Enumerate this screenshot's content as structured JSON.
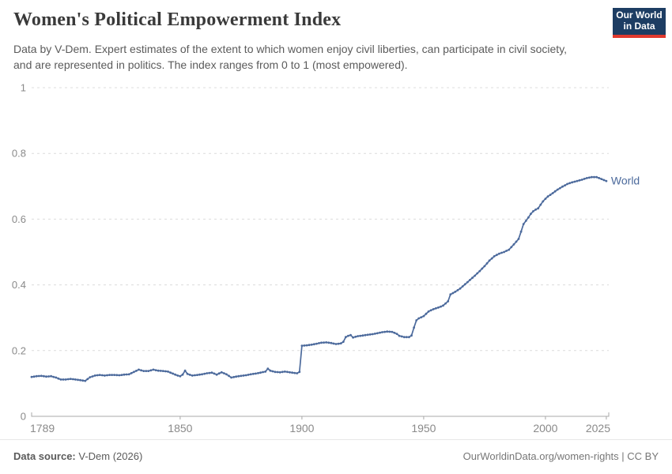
{
  "header": {
    "title": "Women's Political Empowerment Index",
    "subtitle": "Data by V-Dem. Expert estimates of the extent to which women enjoy civil liberties, can participate in civil society, and are represented in politics. The index ranges from 0 to 1 (most empowered).",
    "logo": {
      "line1": "Our World",
      "line2": "in Data",
      "bg_color": "#1d3d63",
      "accent_color": "#e0392e"
    }
  },
  "chart_data": {
    "type": "line",
    "title": "Women's Political Empowerment Index",
    "xlabel": "",
    "ylabel": "",
    "xlim": [
      1789,
      2026
    ],
    "ylim": [
      0,
      1
    ],
    "x_ticks": [
      1789,
      1850,
      1900,
      1950,
      2000,
      2025
    ],
    "x_tick_labels": [
      "1789",
      "1850",
      "1900",
      "1950",
      "2000",
      "2025"
    ],
    "y_ticks": [
      0,
      0.2,
      0.4,
      0.6,
      0.8,
      1
    ],
    "y_tick_labels": [
      "0",
      "0.2",
      "0.4",
      "0.6",
      "0.8",
      "1"
    ],
    "grid": "horizontal dashed gridlines",
    "legend_position": "label at end of line",
    "colors": {
      "line": "#4c6a9c",
      "grid": "#dcdcdc",
      "axis": "#a8a8a8",
      "tick_text": "#8a8a8a"
    },
    "series": [
      {
        "name": "World",
        "color": "#4c6a9c",
        "points": [
          [
            1789,
            0.12
          ],
          [
            1791,
            0.122
          ],
          [
            1793,
            0.123
          ],
          [
            1795,
            0.121
          ],
          [
            1797,
            0.122
          ],
          [
            1799,
            0.118
          ],
          [
            1801,
            0.112
          ],
          [
            1803,
            0.112
          ],
          [
            1805,
            0.114
          ],
          [
            1807,
            0.112
          ],
          [
            1809,
            0.11
          ],
          [
            1811,
            0.108
          ],
          [
            1813,
            0.119
          ],
          [
            1815,
            0.124
          ],
          [
            1817,
            0.126
          ],
          [
            1819,
            0.124
          ],
          [
            1821,
            0.126
          ],
          [
            1823,
            0.126
          ],
          [
            1825,
            0.125
          ],
          [
            1827,
            0.127
          ],
          [
            1829,
            0.128
          ],
          [
            1831,
            0.135
          ],
          [
            1833,
            0.142
          ],
          [
            1835,
            0.138
          ],
          [
            1837,
            0.138
          ],
          [
            1839,
            0.142
          ],
          [
            1841,
            0.139
          ],
          [
            1843,
            0.138
          ],
          [
            1845,
            0.136
          ],
          [
            1847,
            0.13
          ],
          [
            1849,
            0.124
          ],
          [
            1850,
            0.122
          ],
          [
            1851,
            0.127
          ],
          [
            1852,
            0.139
          ],
          [
            1853,
            0.129
          ],
          [
            1855,
            0.124
          ],
          [
            1857,
            0.126
          ],
          [
            1859,
            0.128
          ],
          [
            1861,
            0.131
          ],
          [
            1863,
            0.133
          ],
          [
            1865,
            0.127
          ],
          [
            1867,
            0.134
          ],
          [
            1869,
            0.128
          ],
          [
            1871,
            0.118
          ],
          [
            1873,
            0.121
          ],
          [
            1875,
            0.123
          ],
          [
            1877,
            0.125
          ],
          [
            1879,
            0.128
          ],
          [
            1881,
            0.13
          ],
          [
            1883,
            0.133
          ],
          [
            1885,
            0.136
          ],
          [
            1886,
            0.145
          ],
          [
            1887,
            0.139
          ],
          [
            1889,
            0.135
          ],
          [
            1891,
            0.134
          ],
          [
            1893,
            0.136
          ],
          [
            1895,
            0.134
          ],
          [
            1897,
            0.132
          ],
          [
            1898,
            0.131
          ],
          [
            1899,
            0.135
          ],
          [
            1900,
            0.215
          ],
          [
            1902,
            0.216
          ],
          [
            1904,
            0.218
          ],
          [
            1906,
            0.221
          ],
          [
            1908,
            0.224
          ],
          [
            1910,
            0.225
          ],
          [
            1912,
            0.223
          ],
          [
            1914,
            0.22
          ],
          [
            1916,
            0.222
          ],
          [
            1917,
            0.227
          ],
          [
            1918,
            0.241
          ],
          [
            1919,
            0.245
          ],
          [
            1920,
            0.247
          ],
          [
            1921,
            0.24
          ],
          [
            1923,
            0.244
          ],
          [
            1925,
            0.246
          ],
          [
            1927,
            0.248
          ],
          [
            1929,
            0.25
          ],
          [
            1931,
            0.253
          ],
          [
            1933,
            0.256
          ],
          [
            1935,
            0.258
          ],
          [
            1937,
            0.257
          ],
          [
            1939,
            0.251
          ],
          [
            1940,
            0.245
          ],
          [
            1942,
            0.241
          ],
          [
            1944,
            0.241
          ],
          [
            1945,
            0.246
          ],
          [
            1946,
            0.27
          ],
          [
            1947,
            0.292
          ],
          [
            1948,
            0.298
          ],
          [
            1950,
            0.305
          ],
          [
            1952,
            0.319
          ],
          [
            1954,
            0.326
          ],
          [
            1956,
            0.331
          ],
          [
            1958,
            0.337
          ],
          [
            1960,
            0.35
          ],
          [
            1961,
            0.371
          ],
          [
            1963,
            0.379
          ],
          [
            1965,
            0.389
          ],
          [
            1967,
            0.402
          ],
          [
            1969,
            0.415
          ],
          [
            1971,
            0.428
          ],
          [
            1973,
            0.442
          ],
          [
            1975,
            0.457
          ],
          [
            1977,
            0.474
          ],
          [
            1979,
            0.487
          ],
          [
            1981,
            0.495
          ],
          [
            1983,
            0.5
          ],
          [
            1985,
            0.507
          ],
          [
            1987,
            0.523
          ],
          [
            1989,
            0.54
          ],
          [
            1990,
            0.562
          ],
          [
            1991,
            0.585
          ],
          [
            1992,
            0.595
          ],
          [
            1993,
            0.605
          ],
          [
            1994,
            0.616
          ],
          [
            1995,
            0.624
          ],
          [
            1996,
            0.629
          ],
          [
            1997,
            0.633
          ],
          [
            1998,
            0.644
          ],
          [
            1999,
            0.654
          ],
          [
            2000,
            0.662
          ],
          [
            2001,
            0.669
          ],
          [
            2003,
            0.679
          ],
          [
            2005,
            0.69
          ],
          [
            2007,
            0.699
          ],
          [
            2009,
            0.707
          ],
          [
            2011,
            0.712
          ],
          [
            2013,
            0.716
          ],
          [
            2015,
            0.72
          ],
          [
            2017,
            0.725
          ],
          [
            2019,
            0.728
          ],
          [
            2021,
            0.728
          ],
          [
            2023,
            0.722
          ],
          [
            2025,
            0.716
          ]
        ]
      }
    ]
  },
  "footer": {
    "source_label": "Data source:",
    "source_value": " V-Dem (2026)",
    "link_text": "OurWorldinData.org/women-rights | CC BY"
  }
}
